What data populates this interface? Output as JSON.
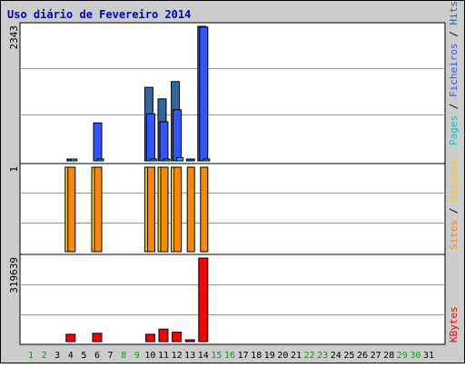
{
  "chart_data": {
    "type": "bar",
    "title": "Uso diário de Fevereiro 2014",
    "categories": [
      "1",
      "2",
      "3",
      "4",
      "5",
      "6",
      "7",
      "8",
      "9",
      "10",
      "11",
      "12",
      "13",
      "14",
      "15",
      "16",
      "17",
      "18",
      "19",
      "20",
      "21",
      "22",
      "23",
      "24",
      "25",
      "26",
      "27",
      "28",
      "29",
      "30",
      "31"
    ],
    "weekend_days": [
      "1",
      "2",
      "8",
      "9",
      "15",
      "16",
      "22",
      "23",
      "29",
      "30"
    ],
    "colors": {
      "title": "#0000cc",
      "hits": "#336699",
      "files": "#3355ff",
      "pages": "#00cccc",
      "visits": "#ffcc00",
      "sites": "#ff8800",
      "kbytes": "#ff0000",
      "weekday_label": "#000000",
      "weekend_label": "#00aa00",
      "background": "#cccccc",
      "plot": "#ffffff"
    },
    "panels": [
      {
        "name": "top",
        "ymax_label": "2343",
        "ymax": 2343,
        "legend": [
          "Pages",
          "Ficheiros",
          "Hits"
        ],
        "series": [
          {
            "name": "Hits",
            "values": [
              0,
              0,
              0,
              0,
              0,
              0,
              0,
              0,
              0,
              1280,
              1080,
              1380,
              0,
              2343,
              0,
              0,
              0,
              0,
              0,
              0,
              0,
              0,
              0,
              0,
              0,
              0,
              0,
              0,
              0,
              0,
              0
            ]
          },
          {
            "name": "Ficheiros",
            "values": [
              0,
              0,
              0,
              30,
              0,
              660,
              0,
              0,
              0,
              820,
              680,
              890,
              25,
              2330,
              0,
              0,
              0,
              0,
              0,
              0,
              0,
              0,
              0,
              0,
              0,
              0,
              0,
              0,
              0,
              0,
              0
            ]
          },
          {
            "name": "Pages",
            "values": [
              0,
              0,
              0,
              18,
              0,
              8,
              0,
              0,
              0,
              15,
              15,
              55,
              0,
              12,
              0,
              0,
              0,
              0,
              0,
              0,
              0,
              0,
              0,
              0,
              0,
              0,
              0,
              0,
              0,
              0,
              0
            ]
          }
        ]
      },
      {
        "name": "middle",
        "ymax_label": "1",
        "ymax": 1,
        "legend": [
          "Sites",
          "Visitas"
        ],
        "series": [
          {
            "name": "Visitas",
            "values": [
              0,
              0,
              0,
              1,
              0,
              1,
              0,
              0,
              0,
              1,
              1,
              1,
              0,
              0,
              0,
              0,
              0,
              0,
              0,
              0,
              0,
              0,
              0,
              0,
              0,
              0,
              0,
              0,
              0,
              0,
              0
            ]
          },
          {
            "name": "Sites",
            "values": [
              0,
              0,
              0,
              1,
              0,
              1,
              0,
              0,
              0,
              1,
              1,
              1,
              1,
              1,
              0,
              0,
              0,
              0,
              0,
              0,
              0,
              0,
              0,
              0,
              0,
              0,
              0,
              0,
              0,
              0,
              0
            ]
          }
        ]
      },
      {
        "name": "bottom",
        "ymax_label": "319639",
        "ymax": 319639,
        "legend": [
          "KBytes"
        ],
        "series": [
          {
            "name": "KBytes",
            "values": [
              0,
              0,
              0,
              28000,
              0,
              32000,
              0,
              0,
              0,
              28000,
              48000,
              36000,
              2000,
              319639,
              0,
              0,
              0,
              0,
              0,
              0,
              0,
              0,
              0,
              0,
              0,
              0,
              0,
              0,
              0,
              0,
              0
            ]
          }
        ]
      }
    ]
  }
}
